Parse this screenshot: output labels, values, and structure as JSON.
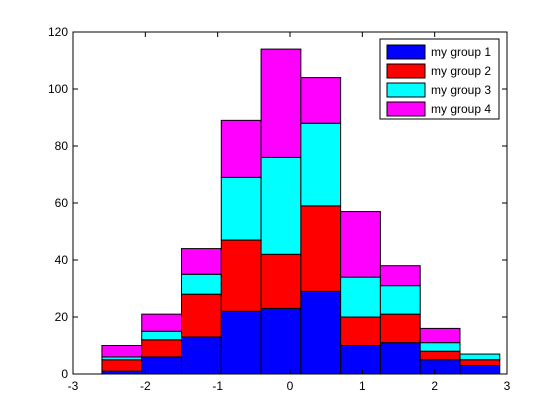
{
  "chart_data": {
    "type": "bar",
    "subtype": "stacked-histogram",
    "title": "",
    "xlabel": "",
    "ylabel": "",
    "bin_edges": [
      -2.6,
      -2.05,
      -1.5,
      -0.95,
      -0.4,
      0.15,
      0.7,
      1.25,
      1.8,
      2.35,
      2.9
    ],
    "xlim": [
      -3,
      3
    ],
    "ylim": [
      0,
      120
    ],
    "xticks": [
      -3,
      -2,
      -1,
      0,
      1,
      2,
      3
    ],
    "yticks": [
      0,
      20,
      40,
      60,
      80,
      100,
      120
    ],
    "grid": false,
    "legend_position": "top-right",
    "series": [
      {
        "name": "my group 1",
        "color": "#0000ff",
        "values": [
          1,
          6,
          13,
          22,
          23,
          29,
          10,
          11,
          5,
          3
        ]
      },
      {
        "name": "my group 2",
        "color": "#ff0000",
        "values": [
          4,
          6,
          15,
          25,
          19,
          30,
          10,
          10,
          3,
          2
        ]
      },
      {
        "name": "my group 3",
        "color": "#00ffff",
        "values": [
          1,
          3,
          7,
          22,
          34,
          29,
          14,
          10,
          3,
          2
        ]
      },
      {
        "name": "my group 4",
        "color": "#ff00ff",
        "values": [
          4,
          6,
          9,
          20,
          38,
          16,
          23,
          7,
          5,
          0
        ]
      }
    ]
  }
}
